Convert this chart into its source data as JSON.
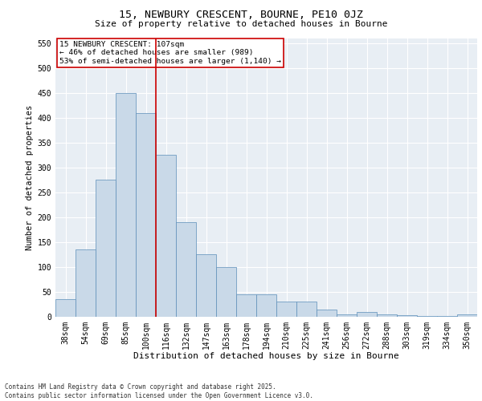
{
  "title1": "15, NEWBURY CRESCENT, BOURNE, PE10 0JZ",
  "title2": "Size of property relative to detached houses in Bourne",
  "xlabel": "Distribution of detached houses by size in Bourne",
  "ylabel": "Number of detached properties",
  "categories": [
    "38sqm",
    "54sqm",
    "69sqm",
    "85sqm",
    "100sqm",
    "116sqm",
    "132sqm",
    "147sqm",
    "163sqm",
    "178sqm",
    "194sqm",
    "210sqm",
    "225sqm",
    "241sqm",
    "256sqm",
    "272sqm",
    "288sqm",
    "303sqm",
    "319sqm",
    "334sqm",
    "350sqm"
  ],
  "values": [
    35,
    135,
    275,
    450,
    410,
    325,
    190,
    125,
    100,
    45,
    45,
    30,
    30,
    15,
    5,
    10,
    5,
    3,
    2,
    2,
    5
  ],
  "bar_color": "#c9d9e8",
  "bar_edge_color": "#5b8db8",
  "background_color": "#e8eef4",
  "grid_color": "#ffffff",
  "vline_x": 4.5,
  "vline_color": "#cc0000",
  "annotation_text": "15 NEWBURY CRESCENT: 107sqm\n← 46% of detached houses are smaller (989)\n53% of semi-detached houses are larger (1,140) →",
  "annotation_box_color": "#ffffff",
  "annotation_box_edge": "#cc0000",
  "footer_text": "Contains HM Land Registry data © Crown copyright and database right 2025.\nContains public sector information licensed under the Open Government Licence v3.0.",
  "ylim": [
    0,
    560
  ],
  "yticks": [
    0,
    50,
    100,
    150,
    200,
    250,
    300,
    350,
    400,
    450,
    500,
    550
  ],
  "title1_fontsize": 9.5,
  "title2_fontsize": 8,
  "xlabel_fontsize": 8,
  "ylabel_fontsize": 7.5,
  "tick_fontsize": 7,
  "annotation_fontsize": 6.8,
  "footer_fontsize": 5.5
}
